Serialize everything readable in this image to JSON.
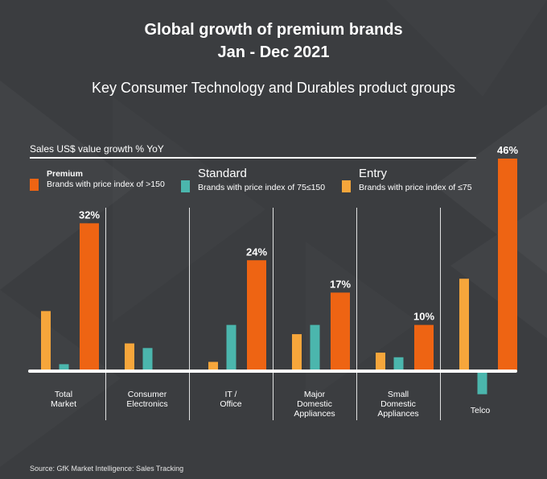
{
  "title_line1": "Global growth of premium brands",
  "title_line2": "Jan - Dec 2021",
  "subtitle": "Key Consumer Technology and Durables product groups",
  "colors": {
    "background": "#3b3d40",
    "premium": "#ee6413",
    "standard": "#4bb6ad",
    "entry": "#f6a63b"
  },
  "legend": {
    "premium": {
      "name": "Premium",
      "desc": "Brands with price index of >150"
    },
    "standard": {
      "name": "Standard",
      "desc": "Brands with price index of 75≤150"
    },
    "entry": {
      "name": "Entry",
      "desc": "Brands with price index of ≤75"
    }
  },
  "source": "Source: GfK Market Intelligence: Sales Tracking",
  "chart_data": {
    "type": "bar",
    "ylabel": "Sales US$ value growth % YoY",
    "categories": [
      [
        "Total",
        "Market"
      ],
      [
        "Consumer",
        "Electronics"
      ],
      [
        "IT /",
        "Office"
      ],
      [
        "Major",
        "Domestic",
        "Appliances"
      ],
      [
        "Small",
        "Domestic",
        "Appliances"
      ],
      [
        "Telco"
      ]
    ],
    "series": [
      {
        "name": "Entry",
        "values": [
          13,
          6,
          2,
          8,
          4,
          20
        ]
      },
      {
        "name": "Standard",
        "values": [
          1.5,
          5,
          10,
          10,
          3,
          -5
        ]
      },
      {
        "name": "Premium",
        "values": [
          32,
          0,
          24,
          17,
          10,
          46
        ]
      }
    ],
    "data_labels": [
      "32%",
      "",
      "24%",
      "17%",
      "10%",
      "46%"
    ],
    "ylim": [
      -8,
      46
    ],
    "grid": false,
    "legend_position": "top"
  }
}
